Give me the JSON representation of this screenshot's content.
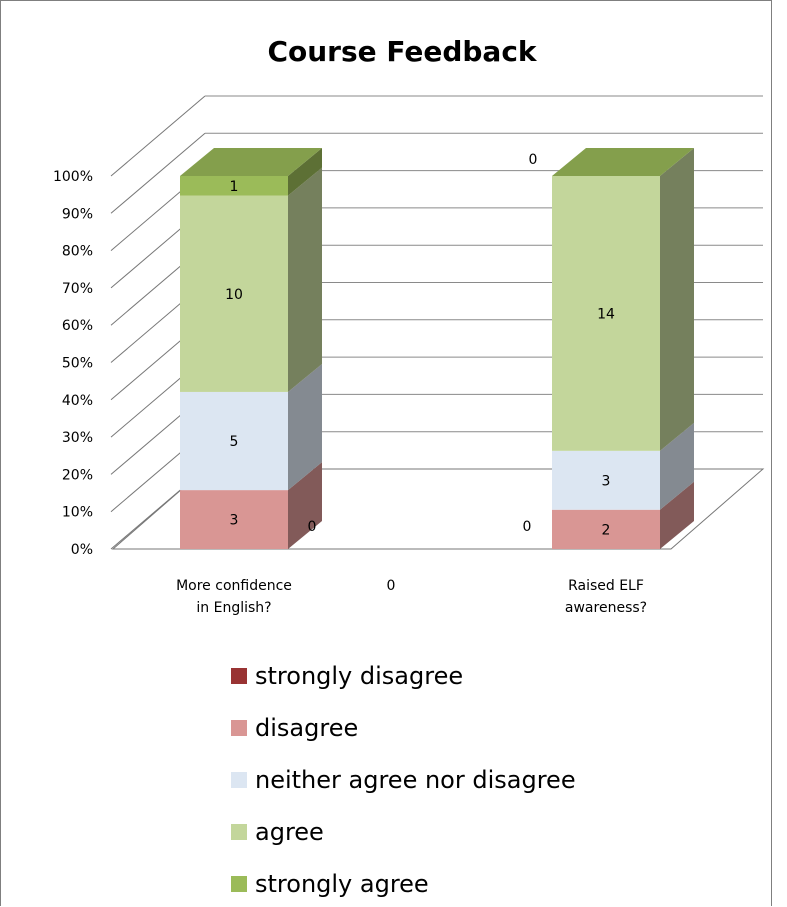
{
  "chart_data": {
    "type": "bar",
    "stacked": "100%",
    "three_d": true,
    "title": "Course Feedback",
    "y_ticks": [
      "0%",
      "10%",
      "20%",
      "30%",
      "40%",
      "50%",
      "60%",
      "70%",
      "80%",
      "90%",
      "100%"
    ],
    "ylim": [
      0,
      100
    ],
    "grid": true,
    "legend_position": "bottom",
    "categories": [
      "More confidence in English?",
      "0",
      "Raised ELF awareness?"
    ],
    "category_lines": [
      [
        "More confidence",
        "in English?"
      ],
      [
        "0"
      ],
      [
        "Raised ELF",
        "awareness?"
      ]
    ],
    "series": [
      {
        "name": "strongly disagree",
        "values": [
          0,
          null,
          0
        ],
        "color": "#993333"
      },
      {
        "name": "disagree",
        "values": [
          3,
          null,
          2
        ],
        "color": "#d99694"
      },
      {
        "name": "neither agree nor disagree",
        "values": [
          5,
          null,
          3
        ],
        "color": "#dce6f2"
      },
      {
        "name": "agree",
        "values": [
          10,
          null,
          14
        ],
        "color": "#c3d69b"
      },
      {
        "name": "strongly agree",
        "values": [
          1,
          null,
          0
        ],
        "color": "#9bbb59"
      }
    ]
  }
}
